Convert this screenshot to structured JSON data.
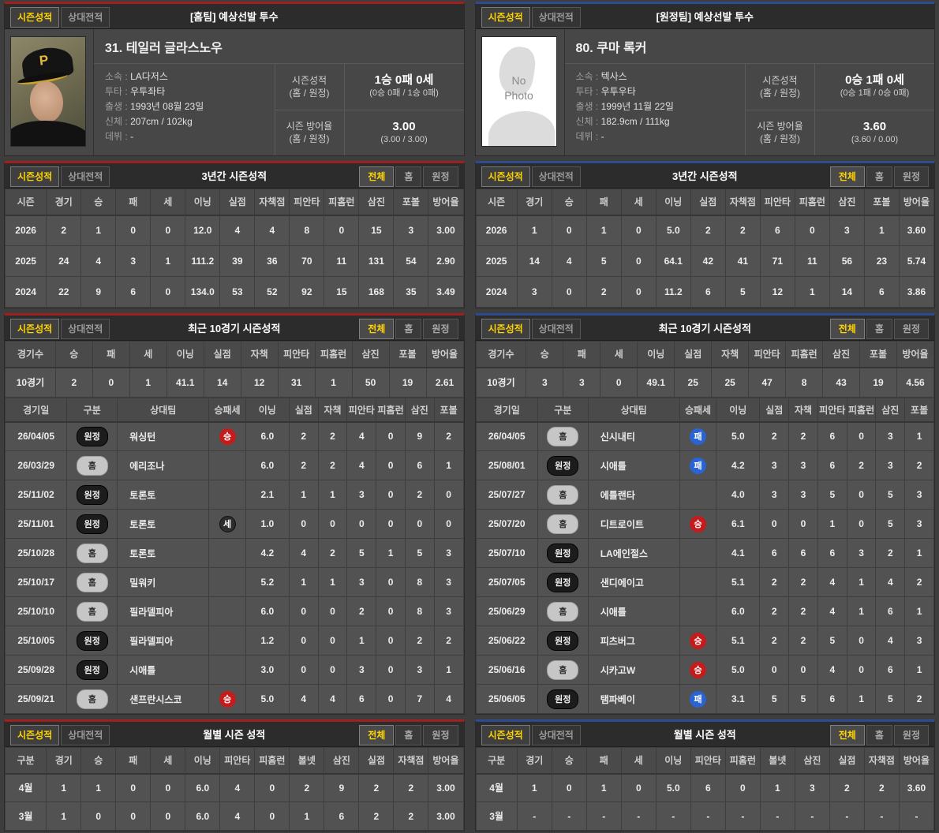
{
  "ui": {
    "tab_season": "시즌성적",
    "tab_vs": "상대전적",
    "filter_all": "전체",
    "filter_home": "홈",
    "filter_away": "원정",
    "stat_record_label": "시즌성적",
    "stat_era_label": "시즌 방어율",
    "stat_range_label": "(홈 / 원정)"
  },
  "colors": {
    "left_accent": "#9e2121",
    "right_accent": "#2f4b8f",
    "active_tab_text": "#ffd400",
    "win_badge": "#c41c1c",
    "lose_badge": "#2a63d4",
    "save_badge": "#2d2d2d"
  },
  "left": {
    "title": "[홈팀] 예상선발 투수",
    "player": {
      "name": "31. 테일러 글라스노우",
      "cap_letter": "P",
      "fields": [
        {
          "label": "소속 :",
          "value": "LA다저스"
        },
        {
          "label": "투타 :",
          "value": "우투좌타"
        },
        {
          "label": "출생 :",
          "value": "1993년 08월 23일"
        },
        {
          "label": "신체 :",
          "value": "207cm / 102kg"
        },
        {
          "label": "데뷔 :",
          "value": "-"
        }
      ],
      "record_main": "1승 0패 0세",
      "record_sub": "(0승 0패 / 1승 0패)",
      "era_main": "3.00",
      "era_sub": "(3.00 / 3.00)"
    },
    "season3": {
      "title": "3년간 시즌성적",
      "headers": [
        "시즌",
        "경기",
        "승",
        "패",
        "세",
        "이닝",
        "실점",
        "자책점",
        "피안타",
        "피홈런",
        "삼진",
        "포볼",
        "방어율"
      ],
      "rows": [
        [
          "2026",
          "2",
          "1",
          "0",
          "0",
          "12.0",
          "4",
          "4",
          "8",
          "0",
          "15",
          "3",
          "3.00"
        ],
        [
          "2025",
          "24",
          "4",
          "3",
          "1",
          "111.2",
          "39",
          "36",
          "70",
          "11",
          "131",
          "54",
          "2.90"
        ],
        [
          "2024",
          "22",
          "9",
          "6",
          "0",
          "134.0",
          "53",
          "52",
          "92",
          "15",
          "168",
          "35",
          "3.49"
        ]
      ]
    },
    "recent10": {
      "title": "최근 10경기 시즌성적",
      "headers": [
        "경기수",
        "승",
        "패",
        "세",
        "이닝",
        "실점",
        "자책",
        "피안타",
        "피홈런",
        "삼진",
        "포볼",
        "방어율"
      ],
      "rows": [
        [
          "10경기",
          "2",
          "0",
          "1",
          "41.1",
          "14",
          "12",
          "31",
          "1",
          "50",
          "19",
          "2.61"
        ]
      ]
    },
    "log": {
      "headers": [
        "경기일",
        "구분",
        "상대팀",
        "승패세",
        "이닝",
        "실점",
        "자책",
        "피안타",
        "피홈런",
        "삼진",
        "포볼"
      ],
      "rows": [
        {
          "date": "26/04/05",
          "loc": "원정",
          "opp": "워싱턴",
          "res": "승",
          "cells": [
            "6.0",
            "2",
            "2",
            "4",
            "0",
            "9",
            "2"
          ]
        },
        {
          "date": "26/03/29",
          "loc": "홈",
          "opp": "에리조나",
          "res": "",
          "cells": [
            "6.0",
            "2",
            "2",
            "4",
            "0",
            "6",
            "1"
          ]
        },
        {
          "date": "25/11/02",
          "loc": "원정",
          "opp": "토론토",
          "res": "",
          "cells": [
            "2.1",
            "1",
            "1",
            "3",
            "0",
            "2",
            "0"
          ]
        },
        {
          "date": "25/11/01",
          "loc": "원정",
          "opp": "토론토",
          "res": "세",
          "cells": [
            "1.0",
            "0",
            "0",
            "0",
            "0",
            "0",
            "0"
          ]
        },
        {
          "date": "25/10/28",
          "loc": "홈",
          "opp": "토론토",
          "res": "",
          "cells": [
            "4.2",
            "4",
            "2",
            "5",
            "1",
            "5",
            "3"
          ]
        },
        {
          "date": "25/10/17",
          "loc": "홈",
          "opp": "밀워키",
          "res": "",
          "cells": [
            "5.2",
            "1",
            "1",
            "3",
            "0",
            "8",
            "3"
          ]
        },
        {
          "date": "25/10/10",
          "loc": "홈",
          "opp": "필라델피아",
          "res": "",
          "cells": [
            "6.0",
            "0",
            "0",
            "2",
            "0",
            "8",
            "3"
          ]
        },
        {
          "date": "25/10/05",
          "loc": "원정",
          "opp": "필라델피아",
          "res": "",
          "cells": [
            "1.2",
            "0",
            "0",
            "1",
            "0",
            "2",
            "2"
          ]
        },
        {
          "date": "25/09/28",
          "loc": "원정",
          "opp": "시애틀",
          "res": "",
          "cells": [
            "3.0",
            "0",
            "0",
            "3",
            "0",
            "3",
            "1"
          ]
        },
        {
          "date": "25/09/21",
          "loc": "홈",
          "opp": "샌프란시스코",
          "res": "승",
          "cells": [
            "5.0",
            "4",
            "4",
            "6",
            "0",
            "7",
            "4"
          ]
        }
      ]
    },
    "monthly": {
      "title": "월별 시즌 성적",
      "headers": [
        "구분",
        "경기",
        "승",
        "패",
        "세",
        "이닝",
        "피안타",
        "피홈런",
        "볼넷",
        "삼진",
        "실점",
        "자책점",
        "방어율"
      ],
      "rows": [
        [
          "4월",
          "1",
          "1",
          "0",
          "0",
          "6.0",
          "4",
          "0",
          "2",
          "9",
          "2",
          "2",
          "3.00"
        ],
        [
          "3월",
          "1",
          "0",
          "0",
          "0",
          "6.0",
          "4",
          "0",
          "1",
          "6",
          "2",
          "2",
          "3.00"
        ]
      ]
    }
  },
  "right": {
    "title": "[원정팀] 예상선발 투수",
    "player": {
      "name": "80. 쿠마 록커",
      "no_photo_text": "No\nPhoto",
      "fields": [
        {
          "label": "소속 :",
          "value": "텍사스"
        },
        {
          "label": "투타 :",
          "value": "우투우타"
        },
        {
          "label": "출생 :",
          "value": "1999년 11월 22일"
        },
        {
          "label": "신체 :",
          "value": "182.9cm / 111kg"
        },
        {
          "label": "데뷔 :",
          "value": "-"
        }
      ],
      "record_main": "0승 1패 0세",
      "record_sub": "(0승 1패 / 0승 0패)",
      "era_main": "3.60",
      "era_sub": "(3.60 / 0.00)"
    },
    "season3": {
      "title": "3년간 시즌성적",
      "headers": [
        "시즌",
        "경기",
        "승",
        "패",
        "세",
        "이닝",
        "실점",
        "자책점",
        "피안타",
        "피홈런",
        "삼진",
        "포볼",
        "방어율"
      ],
      "rows": [
        [
          "2026",
          "1",
          "0",
          "1",
          "0",
          "5.0",
          "2",
          "2",
          "6",
          "0",
          "3",
          "1",
          "3.60"
        ],
        [
          "2025",
          "14",
          "4",
          "5",
          "0",
          "64.1",
          "42",
          "41",
          "71",
          "11",
          "56",
          "23",
          "5.74"
        ],
        [
          "2024",
          "3",
          "0",
          "2",
          "0",
          "11.2",
          "6",
          "5",
          "12",
          "1",
          "14",
          "6",
          "3.86"
        ]
      ]
    },
    "recent10": {
      "title": "최근 10경기 시즌성적",
      "headers": [
        "경기수",
        "승",
        "패",
        "세",
        "이닝",
        "실점",
        "자책",
        "피안타",
        "피홈런",
        "삼진",
        "포볼",
        "방어율"
      ],
      "rows": [
        [
          "10경기",
          "3",
          "3",
          "0",
          "49.1",
          "25",
          "25",
          "47",
          "8",
          "43",
          "19",
          "4.56"
        ]
      ]
    },
    "log": {
      "headers": [
        "경기일",
        "구분",
        "상대팀",
        "승패세",
        "이닝",
        "실점",
        "자책",
        "피안타",
        "피홈런",
        "삼진",
        "포볼"
      ],
      "rows": [
        {
          "date": "26/04/05",
          "loc": "홈",
          "opp": "신시내티",
          "res": "패",
          "cells": [
            "5.0",
            "2",
            "2",
            "6",
            "0",
            "3",
            "1"
          ]
        },
        {
          "date": "25/08/01",
          "loc": "원정",
          "opp": "시애틀",
          "res": "패",
          "cells": [
            "4.2",
            "3",
            "3",
            "6",
            "2",
            "3",
            "2"
          ]
        },
        {
          "date": "25/07/27",
          "loc": "홈",
          "opp": "에틀랜타",
          "res": "",
          "cells": [
            "4.0",
            "3",
            "3",
            "5",
            "0",
            "5",
            "3"
          ]
        },
        {
          "date": "25/07/20",
          "loc": "홈",
          "opp": "디트로이트",
          "res": "승",
          "cells": [
            "6.1",
            "0",
            "0",
            "1",
            "0",
            "5",
            "3"
          ]
        },
        {
          "date": "25/07/10",
          "loc": "원정",
          "opp": "LA에인절스",
          "res": "",
          "cells": [
            "4.1",
            "6",
            "6",
            "6",
            "3",
            "2",
            "1"
          ]
        },
        {
          "date": "25/07/05",
          "loc": "원정",
          "opp": "샌디에이고",
          "res": "",
          "cells": [
            "5.1",
            "2",
            "2",
            "4",
            "1",
            "4",
            "2"
          ]
        },
        {
          "date": "25/06/29",
          "loc": "홈",
          "opp": "시애틀",
          "res": "",
          "cells": [
            "6.0",
            "2",
            "2",
            "4",
            "1",
            "6",
            "1"
          ]
        },
        {
          "date": "25/06/22",
          "loc": "원정",
          "opp": "피츠버그",
          "res": "승",
          "cells": [
            "5.1",
            "2",
            "2",
            "5",
            "0",
            "4",
            "3"
          ]
        },
        {
          "date": "25/06/16",
          "loc": "홈",
          "opp": "시카고W",
          "res": "승",
          "cells": [
            "5.0",
            "0",
            "0",
            "4",
            "0",
            "6",
            "1"
          ]
        },
        {
          "date": "25/06/05",
          "loc": "원정",
          "opp": "탬파베이",
          "res": "패",
          "cells": [
            "3.1",
            "5",
            "5",
            "6",
            "1",
            "5",
            "2"
          ]
        }
      ]
    },
    "monthly": {
      "title": "월별 시즌 성적",
      "headers": [
        "구분",
        "경기",
        "승",
        "패",
        "세",
        "이닝",
        "피안타",
        "피홈런",
        "볼넷",
        "삼진",
        "실점",
        "자책점",
        "방어율"
      ],
      "rows": [
        [
          "4월",
          "1",
          "0",
          "1",
          "0",
          "5.0",
          "6",
          "0",
          "1",
          "3",
          "2",
          "2",
          "3.60"
        ],
        [
          "3월",
          "-",
          "-",
          "-",
          "-",
          "-",
          "-",
          "-",
          "-",
          "-",
          "-",
          "-",
          "-"
        ]
      ]
    }
  }
}
